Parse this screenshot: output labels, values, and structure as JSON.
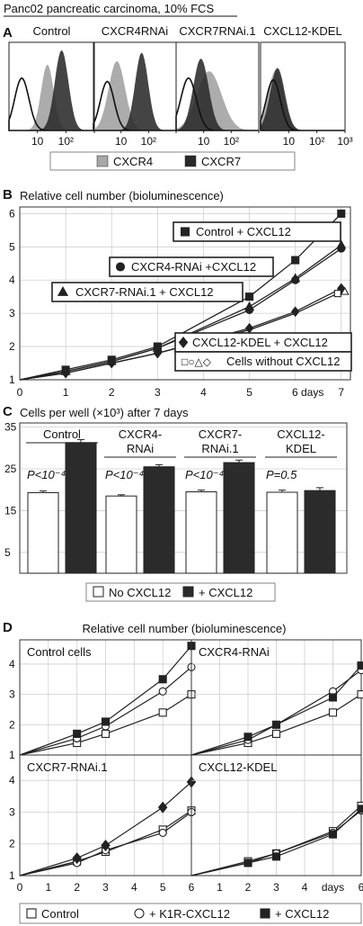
{
  "figure": {
    "header": "Panc02 pancreatic carcinoma, 10% FCS"
  },
  "colors": {
    "cxcr4_fill": "#a8a8a8",
    "cxcr7_fill": "#2a2a2a",
    "line": "#222222",
    "bar_white": "#ffffff",
    "bar_black": "#2b2b2b"
  },
  "panel_a": {
    "letter": "A",
    "chart_data": {
      "type": "area",
      "x_scale": "log",
      "xlim": [
        1,
        1000
      ],
      "x_ticks": [
        "10",
        "10²",
        "10³"
      ],
      "legend": [
        {
          "name": "CXCR4",
          "color": "#a8a8a8"
        },
        {
          "name": "CXCR7",
          "color": "#2a2a2a"
        }
      ],
      "panels": [
        {
          "title": "Control",
          "control_outline": {
            "center": 0.45,
            "width": 0.25,
            "height": 0.62
          },
          "cxcr4": {
            "center": 1.35,
            "width": 0.22,
            "height": 0.78
          },
          "cxcr7": {
            "center": 1.85,
            "width": 0.24,
            "height": 0.95
          }
        },
        {
          "title": "CXCR4RNAi",
          "control_outline": {
            "center": 0.5,
            "width": 0.25,
            "height": 0.58
          },
          "cxcr4": {
            "center": 0.85,
            "width": 0.3,
            "height": 0.82
          },
          "cxcr7": {
            "center": 1.75,
            "width": 0.24,
            "height": 0.92
          }
        },
        {
          "title": "CXCR7RNAi.1",
          "control_outline": {
            "center": 0.45,
            "width": 0.28,
            "height": 0.62
          },
          "cxcr4": {
            "center": 1.2,
            "width": 0.45,
            "height": 0.7
          },
          "cxcr7": {
            "center": 0.9,
            "width": 0.28,
            "height": 0.85
          }
        },
        {
          "title": "CXCL12-KDEL",
          "control_outline": {
            "center": 0.45,
            "width": 0.25,
            "height": 0.6
          },
          "cxcr4": {
            "center": 0.55,
            "width": 0.28,
            "height": 0.72
          },
          "cxcr7": {
            "center": 0.6,
            "width": 0.26,
            "height": 0.74
          }
        }
      ]
    }
  },
  "panel_b": {
    "letter": "B",
    "chart_data": {
      "type": "line",
      "title": "Relative cell number (bioluminescence)",
      "xlim": [
        0,
        7.2
      ],
      "ylim": [
        1,
        6.2
      ],
      "x_ticks": [
        "0",
        "1",
        "2",
        "3",
        "4",
        "5",
        "6 days",
        "7"
      ],
      "y_ticks": [
        "1",
        "2",
        "3",
        "4",
        "5",
        "6"
      ],
      "series": [
        {
          "name": "Control + CXCL12",
          "marker": "square-filled",
          "x": [
            1,
            2,
            3,
            5,
            6,
            7
          ],
          "y": [
            1.3,
            1.6,
            2.0,
            3.5,
            4.6,
            6.0
          ]
        },
        {
          "name": "CXCR4-RNAi +CXCL12",
          "marker": "circle-filled",
          "x": [
            1,
            2,
            3,
            5,
            6,
            7
          ],
          "y": [
            1.25,
            1.55,
            1.95,
            3.1,
            4.0,
            4.95
          ]
        },
        {
          "name": "CXCR7-RNAi.1 + CXCL12",
          "marker": "triangle-filled",
          "x": [
            1,
            2,
            3,
            5,
            6,
            7
          ],
          "y": [
            1.25,
            1.55,
            1.95,
            3.2,
            4.05,
            5.05
          ]
        },
        {
          "name": "CXCL12-KDEL + CXCL12",
          "marker": "diamond-filled",
          "x": [
            1,
            2,
            3,
            5,
            6,
            7
          ],
          "y": [
            1.2,
            1.5,
            1.8,
            2.55,
            3.05,
            3.75
          ]
        },
        {
          "name": "Cells without CXCL12",
          "marker": "open-markers",
          "marker_symbols": "□○△◇",
          "x": [
            1,
            2,
            3,
            5,
            6,
            7
          ],
          "y": [
            1.2,
            1.5,
            1.8,
            2.5,
            3.0,
            3.65
          ]
        }
      ]
    }
  },
  "panel_c": {
    "letter": "C",
    "chart_data": {
      "type": "bar",
      "title": "Cells per well (×10³) after 7 days",
      "ylim": [
        0,
        36
      ],
      "y_ticks": [
        "5",
        "15",
        "25",
        "35"
      ],
      "legend": [
        {
          "name": "No CXCL12",
          "color": "#ffffff"
        },
        {
          "name": "+ CXCL12",
          "color": "#2b2b2b"
        }
      ],
      "groups": [
        {
          "label_lines": [
            "Control"
          ],
          "p_label": "P<10⁻⁴",
          "no_cxcl12": 19.3,
          "no_cxcl12_err": 0.4,
          "plus_cxcl12": 31.3,
          "plus_cxcl12_err": 0.7
        },
        {
          "label_lines": [
            "CXCR4-",
            "RNAi"
          ],
          "p_label": "P<10⁻⁴",
          "no_cxcl12": 18.5,
          "no_cxcl12_err": 0.3,
          "plus_cxcl12": 25.5,
          "plus_cxcl12_err": 0.5
        },
        {
          "label_lines": [
            "CXCR7-",
            "RNAi.1"
          ],
          "p_label": "P<10⁻⁴",
          "no_cxcl12": 19.5,
          "no_cxcl12_err": 0.4,
          "plus_cxcl12": 26.5,
          "plus_cxcl12_err": 0.6
        },
        {
          "label_lines": [
            "CXCL12-",
            "KDEL"
          ],
          "p_label": "P=0.5",
          "no_cxcl12": 19.4,
          "no_cxcl12_err": 0.5,
          "plus_cxcl12": 19.8,
          "plus_cxcl12_err": 0.7
        }
      ]
    }
  },
  "panel_d": {
    "letter": "D",
    "chart_data": {
      "type": "line",
      "title": "Relative cell number (bioluminescence)",
      "xlim": [
        0,
        6
      ],
      "ylim": [
        1,
        4.8
      ],
      "y_ticks": [
        "1",
        "2",
        "3",
        "4"
      ],
      "x_ticks_left": [
        "0",
        "1",
        "2",
        "3",
        "4",
        "5",
        "6"
      ],
      "x_ticks_right": [
        "1",
        "2",
        "3",
        "4",
        "days",
        "6"
      ],
      "legend": [
        {
          "name": "Control",
          "marker": "square-open"
        },
        {
          "name": "+ K1R-CXCL12",
          "marker": "circle-open"
        },
        {
          "name": "+ CXCL12",
          "marker": "square-filled"
        }
      ],
      "panels": [
        {
          "title": "Control cells",
          "x": [
            2,
            3,
            5,
            6
          ],
          "control": [
            1.4,
            1.7,
            2.4,
            3.0
          ],
          "k1r": [
            1.55,
            1.95,
            3.1,
            3.9
          ],
          "cxcl12": [
            1.7,
            2.1,
            3.5,
            4.6
          ],
          "cxcl12_marker": "square-filled"
        },
        {
          "title": "CXCR4-RNAi",
          "x": [
            2,
            3,
            5,
            6
          ],
          "control": [
            1.4,
            1.7,
            2.4,
            3.0
          ],
          "k1r": [
            1.5,
            2.0,
            3.1,
            3.8
          ],
          "cxcl12": [
            1.6,
            2.0,
            2.9,
            3.95
          ],
          "cxcl12_marker": "square-filled"
        },
        {
          "title": "CXCR7-RNAi.1",
          "x": [
            2,
            3,
            5,
            6
          ],
          "control": [
            1.45,
            1.75,
            2.45,
            3.05
          ],
          "k1r": [
            1.4,
            1.8,
            2.35,
            3.0
          ],
          "cxcl12": [
            1.55,
            1.95,
            3.15,
            3.95
          ],
          "cxcl12_marker": "diamond-filled"
        },
        {
          "title": "CXCL12-KDEL",
          "x": [
            2,
            3,
            5,
            6
          ],
          "control": [
            1.45,
            1.7,
            2.4,
            3.2
          ],
          "k1r": [
            1.4,
            1.7,
            2.35,
            3.05
          ],
          "cxcl12": [
            1.4,
            1.6,
            2.3,
            3.1
          ],
          "cxcl12_marker": "square-filled"
        }
      ]
    }
  }
}
